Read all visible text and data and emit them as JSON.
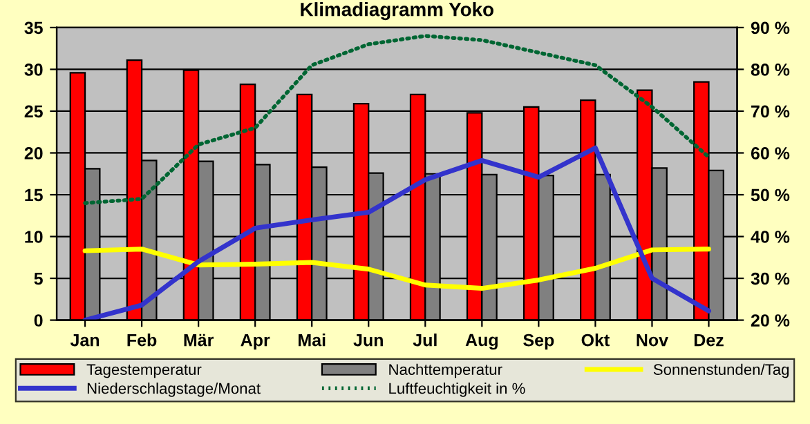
{
  "chart_data": {
    "type": "bar",
    "title": "Klimadiagramm Yoko",
    "categories": [
      "Jan",
      "Feb",
      "Mär",
      "Apr",
      "Mai",
      "Jun",
      "Jul",
      "Aug",
      "Sep",
      "Okt",
      "Nov",
      "Dez"
    ],
    "series": [
      {
        "name": "Tagestemperatur",
        "color": "#ff0000",
        "values": [
          29.6,
          31.1,
          29.9,
          28.2,
          27.0,
          25.9,
          27.0,
          24.8,
          25.5,
          26.3,
          27.5,
          28.5
        ]
      },
      {
        "name": "Nachttemperatur",
        "color": "#808080",
        "values": [
          18.1,
          19.1,
          19.0,
          18.6,
          18.3,
          17.6,
          17.5,
          17.4,
          17.3,
          17.4,
          18.2,
          17.9
        ]
      },
      {
        "name": "Sonnenstunden/Tag",
        "type": "line",
        "color": "#ffff00",
        "line_style": "solid",
        "values": [
          8.3,
          8.5,
          6.6,
          6.7,
          6.9,
          6.1,
          4.2,
          3.8,
          4.8,
          6.2,
          8.4,
          8.5
        ]
      },
      {
        "name": "Niederschlagstage/Monat",
        "type": "line",
        "color": "#3333cc",
        "line_style": "solid",
        "values": [
          0.0,
          1.8,
          7.0,
          11.0,
          12.0,
          12.9,
          16.8,
          19.1,
          17.1,
          20.6,
          5.0,
          1.1
        ]
      },
      {
        "name": "Luftfeuchtigkeit in %",
        "type": "line",
        "color": "#006633",
        "line_style": "dotted",
        "axis": "y2",
        "values": [
          48,
          49,
          62,
          66,
          81,
          86,
          88,
          87,
          84,
          81,
          71,
          59
        ]
      }
    ],
    "ylim": [
      0,
      35
    ],
    "yticks": [
      0,
      5,
      10,
      15,
      20,
      25,
      30,
      35
    ],
    "y2lim": [
      20,
      90
    ],
    "y2ticks": [
      {
        "value": 20,
        "label": "20 %"
      },
      {
        "value": 30,
        "label": "30 %"
      },
      {
        "value": 40,
        "label": "40 %"
      },
      {
        "value": 50,
        "label": "50 %"
      },
      {
        "value": 60,
        "label": "60 %"
      },
      {
        "value": 70,
        "label": "70 %"
      },
      {
        "value": 80,
        "label": "80 %"
      },
      {
        "value": 90,
        "label": "90 %"
      }
    ],
    "grid": "y",
    "legend": "bottom",
    "marker": "none"
  }
}
